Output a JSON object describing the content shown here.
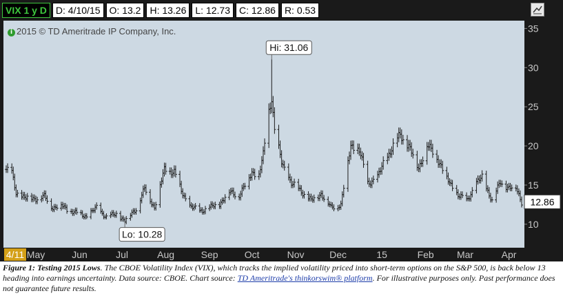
{
  "header": {
    "symbol": "VIX 1 y D",
    "date": "D: 4/10/15",
    "open": "O: 13.2",
    "high": "H: 13.26",
    "low": "L: 12.73",
    "close": "C: 12.86",
    "range": "R: 0.53"
  },
  "watermark": "2015 © TD Ameritrade IP Company, Inc.",
  "caption": {
    "title": "Figure 1: Testing 2015 Lows",
    "text_before_link": ". The CBOE Volatility Index (VIX), which tracks the implied volatility priced into short-term options on the S&P 500, is back below 13 heading into earnings uncertainty. Data source: CBOE. Chart source: ",
    "link": "TD Ameritrade's thinkorswim® platform",
    "text_after_link": ". For illustrative purposes only. Past performance does not guarantee future results."
  },
  "colors": {
    "plot_bg": "#cdd9e3",
    "bar": "#1a1a1a",
    "axis_text": "#c8c8c8",
    "price_tag_bg": "#ffffff",
    "date_tag_bg": "#d4a017"
  },
  "chart_data": {
    "type": "ohlc",
    "ylim": [
      7,
      36
    ],
    "y_ticks": [
      10,
      15,
      20,
      25,
      30,
      35
    ],
    "x_tick_labels": [
      "May",
      "Jun",
      "Jul",
      "Aug",
      "Sep",
      "Oct",
      "Nov",
      "Dec",
      "15",
      "Feb",
      "Mar",
      "Apr"
    ],
    "x_tick_dates": [
      "2014-05-01",
      "2014-06-01",
      "2014-07-01",
      "2014-08-01",
      "2014-09-01",
      "2014-10-01",
      "2014-11-01",
      "2014-12-01",
      "2015-01-01",
      "2015-02-01",
      "2015-03-01",
      "2015-04-01"
    ],
    "x_range": [
      "2014-04-10",
      "2015-04-10"
    ],
    "start_tag": "4/11",
    "last_price": "12.86",
    "last_value": 12.86,
    "annotations": [
      {
        "label": "Hi: 31.06",
        "date": "2014-10-15",
        "value": 31.06
      },
      {
        "label": "Lo: 10.28",
        "date": "2014-07-03",
        "value": 10.28
      }
    ],
    "approx_path": [
      [
        "2014-04-10",
        17.0
      ],
      [
        "2014-04-14",
        16.5
      ],
      [
        "2014-04-17",
        14.0
      ],
      [
        "2014-04-24",
        13.3
      ],
      [
        "2014-05-01",
        13.3
      ],
      [
        "2014-05-07",
        13.5
      ],
      [
        "2014-05-13",
        12.1
      ],
      [
        "2014-05-19",
        12.4
      ],
      [
        "2014-05-23",
        11.9
      ],
      [
        "2014-05-30",
        11.4
      ],
      [
        "2014-06-06",
        11.0
      ],
      [
        "2014-06-13",
        12.1
      ],
      [
        "2014-06-20",
        10.9
      ],
      [
        "2014-06-27",
        11.3
      ],
      [
        "2014-07-03",
        10.4
      ],
      [
        "2014-07-11",
        12.0
      ],
      [
        "2014-07-17",
        14.5
      ],
      [
        "2014-07-24",
        12.1
      ],
      [
        "2014-07-31",
        16.95
      ],
      [
        "2014-08-07",
        16.7
      ],
      [
        "2014-08-12",
        14.2
      ],
      [
        "2014-08-18",
        12.3
      ],
      [
        "2014-08-25",
        11.7
      ],
      [
        "2014-09-01",
        12.1
      ],
      [
        "2014-09-08",
        12.6
      ],
      [
        "2014-09-15",
        14.1
      ],
      [
        "2014-09-22",
        13.7
      ],
      [
        "2014-09-26",
        14.9
      ],
      [
        "2014-10-01",
        16.7
      ],
      [
        "2014-10-06",
        16.2
      ],
      [
        "2014-10-09",
        18.8
      ],
      [
        "2014-10-13",
        24.6
      ],
      [
        "2014-10-15",
        26.3
      ],
      [
        "2014-10-17",
        21.9
      ],
      [
        "2014-10-22",
        17.9
      ],
      [
        "2014-10-29",
        15.2
      ],
      [
        "2014-11-05",
        14.2
      ],
      [
        "2014-11-12",
        13.0
      ],
      [
        "2014-11-19",
        13.9
      ],
      [
        "2014-11-26",
        12.1
      ],
      [
        "2014-12-03",
        12.5
      ],
      [
        "2014-12-10",
        20.1
      ],
      [
        "2014-12-16",
        19.4
      ],
      [
        "2014-12-22",
        15.3
      ],
      [
        "2014-12-29",
        15.9
      ],
      [
        "2015-01-02",
        17.8
      ],
      [
        "2015-01-07",
        19.3
      ],
      [
        "2015-01-14",
        21.5
      ],
      [
        "2015-01-20",
        19.9
      ],
      [
        "2015-01-27",
        17.2
      ],
      [
        "2015-02-02",
        20.0
      ],
      [
        "2015-02-09",
        18.6
      ],
      [
        "2015-02-16",
        15.8
      ],
      [
        "2015-02-24",
        13.7
      ],
      [
        "2015-03-02",
        13.0
      ],
      [
        "2015-03-09",
        15.2
      ],
      [
        "2015-03-13",
        16.0
      ],
      [
        "2015-03-20",
        13.0
      ],
      [
        "2015-03-26",
        15.4
      ],
      [
        "2015-04-01",
        14.6
      ],
      [
        "2015-04-06",
        14.7
      ],
      [
        "2015-04-10",
        12.86
      ]
    ]
  }
}
